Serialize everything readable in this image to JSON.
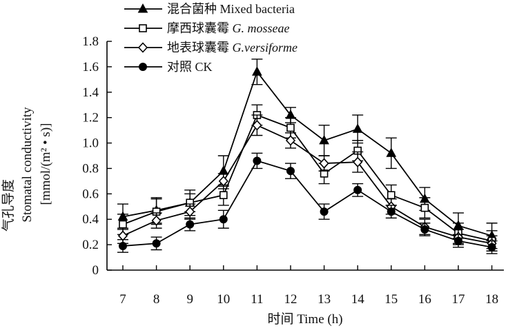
{
  "chart_data": {
    "type": "line",
    "x": [
      7,
      8,
      9,
      10,
      11,
      12,
      13,
      14,
      15,
      16,
      17,
      18
    ],
    "xlabel": "时间 Time (h)",
    "ylabel_lines": [
      "气孔导度",
      "Stomatal conductivity",
      "[mmol/(m² • s)]"
    ],
    "y_ticks": [
      "0",
      "0.2",
      "0.4",
      "0.6",
      "0.8",
      "1.0",
      "1.2",
      "1.4",
      "1.6",
      "1.8"
    ],
    "ylim": [
      0,
      1.8
    ],
    "xlim": [
      6.5,
      18.5
    ],
    "grid": false,
    "legend_position": "top-left",
    "series": [
      {
        "name": "混合菌种 Mixed bacteria",
        "name_parts": [
          "混合菌种 Mixed bacteria",
          ""
        ],
        "marker": "filled-triangle",
        "values": [
          0.42,
          0.47,
          0.53,
          0.78,
          1.56,
          1.22,
          1.02,
          1.11,
          0.92,
          0.56,
          0.35,
          0.27
        ],
        "errors": [
          0.1,
          0.1,
          0.1,
          0.12,
          0.1,
          0.06,
          0.12,
          0.11,
          0.12,
          0.09,
          0.1,
          0.1
        ]
      },
      {
        "name": "摩西球囊霉 G. mosseae",
        "name_parts": [
          "摩西球囊霉 ",
          "G. mosseae"
        ],
        "marker": "open-square",
        "values": [
          0.36,
          0.46,
          0.53,
          0.59,
          1.22,
          1.12,
          0.76,
          0.94,
          0.59,
          0.49,
          0.29,
          0.23
        ],
        "errors": [
          0.08,
          0.1,
          0.07,
          0.08,
          0.08,
          0.08,
          0.08,
          0.08,
          0.08,
          0.08,
          0.08,
          0.08
        ]
      },
      {
        "name": "地表球囊霉 G.versiforme",
        "name_parts": [
          "地表球囊霉 ",
          "G.versiforme"
        ],
        "marker": "open-diamond",
        "values": [
          0.27,
          0.39,
          0.46,
          0.7,
          1.14,
          1.02,
          0.84,
          0.85,
          0.5,
          0.34,
          0.26,
          0.21
        ],
        "errors": [
          0.06,
          0.06,
          0.06,
          0.06,
          0.08,
          0.06,
          0.06,
          0.08,
          0.06,
          0.06,
          0.06,
          0.06
        ]
      },
      {
        "name": "对照 CK",
        "name_parts": [
          "对照 CK",
          ""
        ],
        "marker": "filled-circle",
        "values": [
          0.19,
          0.21,
          0.36,
          0.4,
          0.86,
          0.78,
          0.46,
          0.63,
          0.46,
          0.32,
          0.23,
          0.18
        ],
        "errors": [
          0.05,
          0.05,
          0.05,
          0.07,
          0.06,
          0.06,
          0.06,
          0.05,
          0.05,
          0.05,
          0.05,
          0.05
        ]
      }
    ]
  }
}
